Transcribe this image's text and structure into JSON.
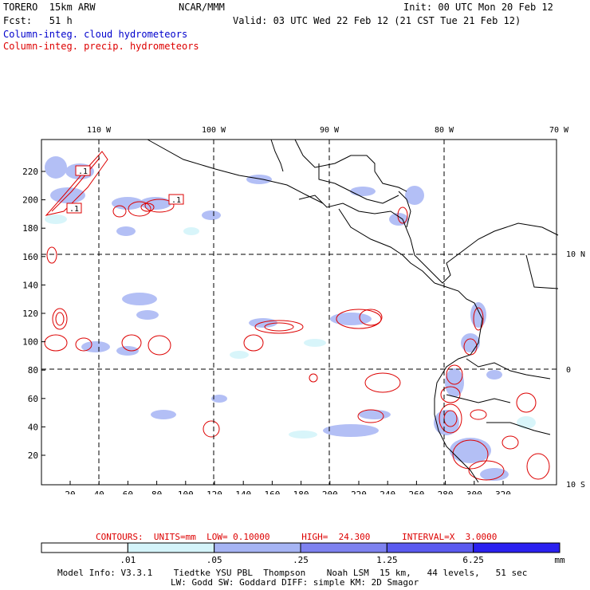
{
  "header": {
    "model": "TORERO  15km ARW",
    "org": "NCAR/MMM",
    "init": "Init: 00 UTC Mon 20 Feb 12",
    "fcst": "Fcst:   51 h",
    "valid": "Valid: 03 UTC Wed 22 Feb 12 (21 CST Tue 21 Feb 12)",
    "field1": "Column-integ. cloud hydrometeors",
    "field2": "Column-integ. precip. hydrometeors"
  },
  "map": {
    "top_lon_labels": [
      "110 W",
      "100 W",
      "90 W",
      "80 W",
      "70 W"
    ],
    "right_lat_labels": [
      "10 N",
      "0",
      "10 S"
    ],
    "y_ticks": [
      "20",
      "40",
      "60",
      "80",
      "100",
      "120",
      "140",
      "160",
      "180",
      "200",
      "220"
    ],
    "x_ticks": [
      "20",
      "40",
      "60",
      "80",
      "100",
      "120",
      "140",
      "160",
      "180",
      "200",
      "220",
      "240",
      "260",
      "280",
      "300",
      "320"
    ],
    "box_labels": [
      ".1",
      ".1",
      ".1"
    ]
  },
  "contours": {
    "text": "CONTOURS:  UNITS=mm  LOW= 0.10000      HIGH=  24.300      INTERVAL=X  3.0000"
  },
  "legend": {
    "unit": "mm",
    "labels": [
      ".01",
      ".05",
      ".25",
      "1.25",
      "6.25"
    ],
    "colors": [
      "#ffffff",
      "#d4f4fa",
      "#a6b4f4",
      "#7e82f0",
      "#5a5af0",
      "#2a20f0"
    ]
  },
  "footer": {
    "line1": "Model Info: V3.3.1    Tiedtke YSU PBL  Thompson    Noah LSM  15 km,   44 levels,   51 sec",
    "line2": "LW: Godd SW: Goddard DIFF: simple KM: 2D Smagor"
  }
}
